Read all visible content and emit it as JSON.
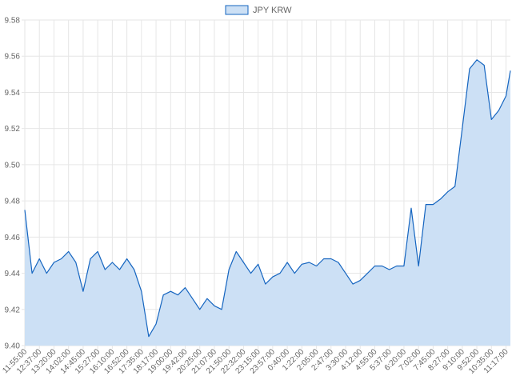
{
  "chart_data": {
    "type": "area",
    "title": "",
    "xlabel": "",
    "ylabel": "",
    "legend_position": "top-center",
    "grid": true,
    "ylim": [
      9.4,
      9.58
    ],
    "yticks": [
      "9.40",
      "9.42",
      "9.44",
      "9.46",
      "9.48",
      "9.50",
      "9.52",
      "9.54",
      "9.56",
      "9.58"
    ],
    "xticks": [
      "11:55:00",
      "12:37:00",
      "13:20:00",
      "14:02:00",
      "14:45:00",
      "15:27:00",
      "16:10:00",
      "16:52:00",
      "17:35:00",
      "18:17:00",
      "19:00:00",
      "19:42:00",
      "20:25:00",
      "21:07:00",
      "21:50:00",
      "22:32:00",
      "23:15:00",
      "23:57:00",
      "0:40:00",
      "1:22:00",
      "2:05:00",
      "2:47:00",
      "3:30:00",
      "4:12:00",
      "4:55:00",
      "5:37:00",
      "6:20:00",
      "7:02:00",
      "7:45:00",
      "8:27:00",
      "9:10:00",
      "9:52:00",
      "10:35:00",
      "11:17:00"
    ],
    "series": [
      {
        "name": "JPY KRW",
        "color": "#1565c0",
        "fill": "#cce0f5",
        "x": [
          "11:55:00",
          "12:16:00",
          "12:37:00",
          "12:58:00",
          "13:20:00",
          "13:41:00",
          "14:02:00",
          "14:23:00",
          "14:45:00",
          "15:06:00",
          "15:27:00",
          "15:48:00",
          "16:10:00",
          "16:31:00",
          "16:52:00",
          "17:13:00",
          "17:35:00",
          "17:56:00",
          "18:17:00",
          "18:38:00",
          "19:00:00",
          "19:21:00",
          "19:42:00",
          "20:03:00",
          "20:25:00",
          "20:46:00",
          "21:07:00",
          "21:28:00",
          "21:50:00",
          "22:11:00",
          "22:32:00",
          "22:53:00",
          "23:15:00",
          "23:36:00",
          "23:57:00",
          "0:18:00",
          "0:40:00",
          "1:01:00",
          "1:22:00",
          "1:43:00",
          "2:05:00",
          "2:26:00",
          "2:47:00",
          "3:08:00",
          "3:30:00",
          "3:51:00",
          "4:12:00",
          "4:33:00",
          "4:55:00",
          "5:16:00",
          "5:37:00",
          "5:58:00",
          "6:20:00",
          "6:41:00",
          "7:02:00",
          "7:23:00",
          "7:45:00",
          "8:06:00",
          "8:27:00",
          "8:48:00",
          "9:10:00",
          "9:31:00",
          "9:52:00",
          "10:13:00",
          "10:35:00",
          "10:56:00",
          "11:17:00",
          "11:38:00"
        ],
        "values": [
          9.475,
          9.44,
          9.448,
          9.44,
          9.446,
          9.448,
          9.452,
          9.446,
          9.43,
          9.448,
          9.452,
          9.442,
          9.446,
          9.442,
          9.448,
          9.442,
          9.43,
          9.405,
          9.412,
          9.428,
          9.43,
          9.428,
          9.432,
          9.426,
          9.42,
          9.426,
          9.422,
          9.42,
          9.442,
          9.452,
          9.446,
          9.44,
          9.445,
          9.434,
          9.438,
          9.44,
          9.446,
          9.44,
          9.445,
          9.446,
          9.444,
          9.448,
          9.448,
          9.446,
          9.44,
          9.434,
          9.436,
          9.44,
          9.444,
          9.444,
          9.442,
          9.444,
          9.444,
          9.476,
          9.444,
          9.478,
          9.478,
          9.481,
          9.485,
          9.488,
          9.52,
          9.553,
          9.558,
          9.555,
          9.525,
          9.53,
          9.538,
          9.552
        ]
      }
    ]
  }
}
